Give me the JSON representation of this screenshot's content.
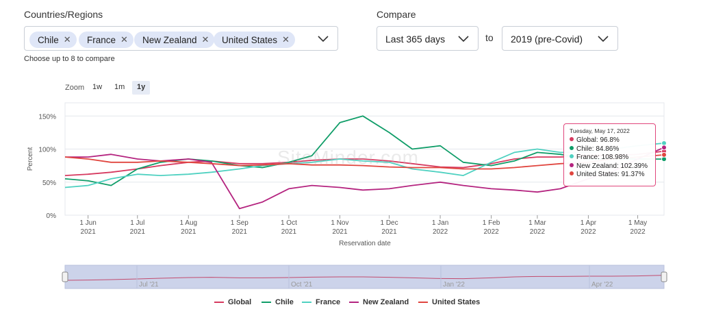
{
  "filters": {
    "countries_label": "Countries/Regions",
    "chips": [
      {
        "label": "Chile",
        "remove": "✕"
      },
      {
        "label": "France",
        "remove": "✕"
      },
      {
        "label": "New Zealand",
        "remove": "✕"
      },
      {
        "label": "United States",
        "remove": "✕"
      }
    ],
    "hint": "Choose up to 8 to compare",
    "compare_label": "Compare",
    "period_value": "Last 365 days",
    "to_label": "to",
    "baseline_value": "2019 (pre-Covid)"
  },
  "zoom": {
    "label": "Zoom",
    "buttons": [
      "1w",
      "1m",
      "1y"
    ],
    "active": "1y"
  },
  "watermark": "SiteMinder.com",
  "tooltip": {
    "title": "Tuesday, May 17, 2022",
    "rows": [
      {
        "text": "Global: 96.8%",
        "color": "#d6395f"
      },
      {
        "text": "Chile: 84.86%",
        "color": "#0f9d68"
      },
      {
        "text": "France: 108.98%",
        "color": "#4fd1c1"
      },
      {
        "text": "New Zealand: 102.39%",
        "color": "#b4237f"
      },
      {
        "text": "United States: 91.37%",
        "color": "#e0453e"
      }
    ]
  },
  "navigator_labels": [
    "Jul '21",
    "Oct '21",
    "Jan '22",
    "Apr '22"
  ],
  "chart_data": {
    "type": "line",
    "title": "",
    "xlabel": "Reservation date",
    "ylabel": "Percent",
    "ylim": [
      0,
      170
    ],
    "yticks": [
      "0%",
      "50%",
      "100%",
      "150%"
    ],
    "xticks": [
      {
        "month": "1 Jun",
        "year": "2021"
      },
      {
        "month": "1 Jul",
        "year": "2021"
      },
      {
        "month": "1 Aug",
        "year": "2021"
      },
      {
        "month": "1 Sep",
        "year": "2021"
      },
      {
        "month": "1 Oct",
        "year": "2021"
      },
      {
        "month": "1 Nov",
        "year": "2021"
      },
      {
        "month": "1 Dec",
        "year": "2021"
      },
      {
        "month": "1 Jan",
        "year": "2022"
      },
      {
        "month": "1 Feb",
        "year": "2022"
      },
      {
        "month": "1 Mar",
        "year": "2022"
      },
      {
        "month": "1 Apr",
        "year": "2022"
      },
      {
        "month": "1 May",
        "year": "2022"
      }
    ],
    "x": [
      "2021-05-18",
      "2021-06-01",
      "2021-06-15",
      "2021-07-01",
      "2021-07-15",
      "2021-08-01",
      "2021-08-15",
      "2021-09-01",
      "2021-09-15",
      "2021-10-01",
      "2021-10-15",
      "2021-11-01",
      "2021-11-15",
      "2021-12-01",
      "2021-12-15",
      "2022-01-01",
      "2022-01-15",
      "2022-02-01",
      "2022-02-15",
      "2022-03-01",
      "2022-03-15",
      "2022-04-01",
      "2022-04-15",
      "2022-05-01",
      "2022-05-17"
    ],
    "series": [
      {
        "name": "Global",
        "color": "#d6395f",
        "values": [
          60,
          62,
          65,
          70,
          75,
          80,
          82,
          78,
          78,
          80,
          83,
          85,
          85,
          82,
          78,
          73,
          72,
          78,
          85,
          88,
          88,
          90,
          90,
          92,
          96.8
        ]
      },
      {
        "name": "Chile",
        "color": "#0f9d68",
        "values": [
          55,
          52,
          45,
          70,
          80,
          85,
          82,
          75,
          72,
          80,
          90,
          140,
          150,
          125,
          100,
          105,
          80,
          75,
          82,
          95,
          92,
          85,
          85,
          85,
          84.86
        ]
      },
      {
        "name": "France",
        "color": "#4fd1c1",
        "values": [
          42,
          45,
          55,
          62,
          60,
          62,
          65,
          70,
          75,
          78,
          80,
          85,
          82,
          80,
          70,
          65,
          60,
          80,
          95,
          100,
          95,
          95,
          100,
          105,
          108.98
        ]
      },
      {
        "name": "New Zealand",
        "color": "#b4237f",
        "values": [
          88,
          88,
          92,
          85,
          82,
          85,
          80,
          10,
          20,
          40,
          45,
          42,
          38,
          40,
          45,
          50,
          45,
          40,
          38,
          35,
          40,
          55,
          65,
          85,
          102.39
        ]
      },
      {
        "name": "United States",
        "color": "#e0453e",
        "values": [
          88,
          85,
          80,
          80,
          82,
          80,
          78,
          75,
          76,
          78,
          76,
          76,
          75,
          73,
          72,
          72,
          70,
          70,
          72,
          75,
          78,
          80,
          85,
          88,
          91.37
        ]
      }
    ]
  }
}
